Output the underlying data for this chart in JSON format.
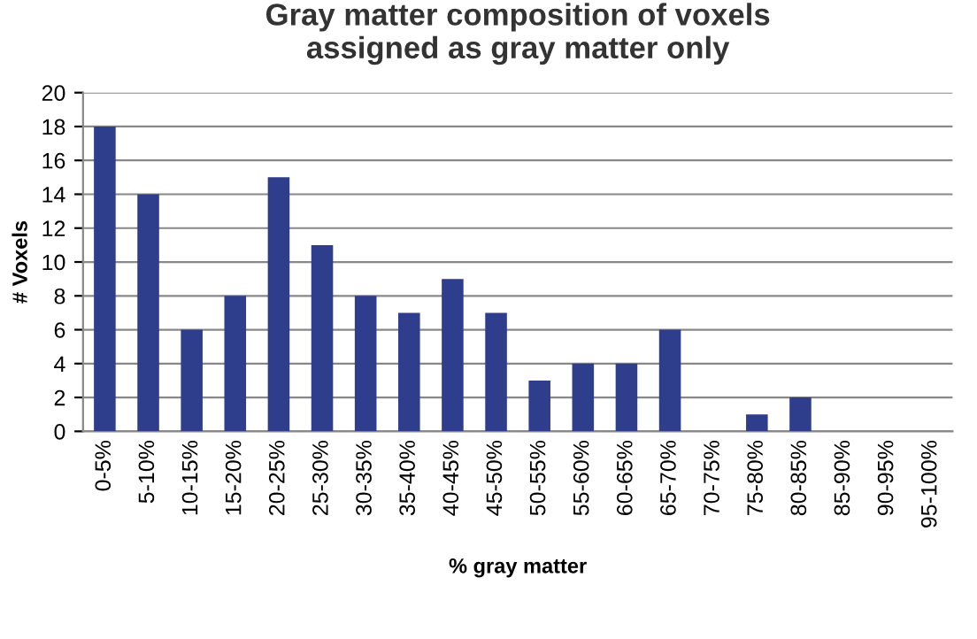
{
  "chart_data": {
    "type": "bar",
    "title": "Gray matter composition of voxels\nassigned as gray matter only",
    "xlabel": "% gray matter",
    "ylabel": "# Voxels",
    "categories": [
      "0-5%",
      "5-10%",
      "10-15%",
      "15-20%",
      "20-25%",
      "25-30%",
      "30-35%",
      "35-40%",
      "40-45%",
      "45-50%",
      "50-55%",
      "55-60%",
      "60-65%",
      "65-70%",
      "70-75%",
      "75-80%",
      "80-85%",
      "85-90%",
      "90-95%",
      "95-100%"
    ],
    "values": [
      18,
      14,
      6,
      8,
      15,
      11,
      8,
      7,
      9,
      7,
      3,
      4,
      4,
      6,
      0,
      1,
      2,
      0,
      0,
      0
    ],
    "color": "#2f3e8c",
    "ylim": [
      0,
      20
    ],
    "yticks": [
      0,
      2,
      4,
      6,
      8,
      10,
      12,
      14,
      16,
      18,
      20
    ],
    "grid": "y",
    "legend": false
  }
}
